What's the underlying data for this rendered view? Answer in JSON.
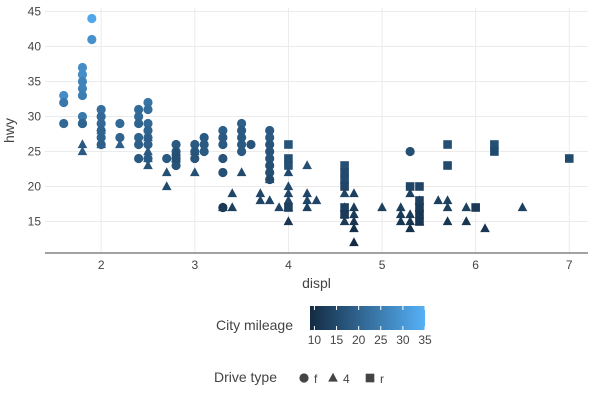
{
  "chart_data": {
    "type": "scatter",
    "xlabel": "displ",
    "ylabel": "hwy",
    "xlim": [
      1.4,
      7.2
    ],
    "ylim": [
      10.5,
      45.5
    ],
    "x_ticks": [
      2,
      3,
      4,
      5,
      6,
      7
    ],
    "y_ticks": [
      15,
      20,
      25,
      30,
      35,
      40,
      45
    ],
    "grid": true,
    "color_legend": {
      "title": "City mileage",
      "range": [
        9,
        35
      ],
      "ticks": [
        10,
        15,
        20,
        25,
        30,
        35
      ],
      "low_color": "#132B43",
      "high_color": "#56B1F7"
    },
    "shape_legend": {
      "title": "Drive type",
      "items": [
        {
          "label": "f",
          "shape": "circle"
        },
        {
          "label": "4",
          "shape": "triangle"
        },
        {
          "label": "r",
          "shape": "square"
        }
      ]
    },
    "points": [
      {
        "x": 1.6,
        "y": 33,
        "cty": 28,
        "drv": "f"
      },
      {
        "x": 1.6,
        "y": 32,
        "cty": 24,
        "drv": "f"
      },
      {
        "x": 1.6,
        "y": 29,
        "cty": 21,
        "drv": "f"
      },
      {
        "x": 1.8,
        "y": 37,
        "cty": 28,
        "drv": "f"
      },
      {
        "x": 1.8,
        "y": 36,
        "cty": 28,
        "drv": "f"
      },
      {
        "x": 1.8,
        "y": 35,
        "cty": 26,
        "drv": "f"
      },
      {
        "x": 1.8,
        "y": 34,
        "cty": 26,
        "drv": "f"
      },
      {
        "x": 1.8,
        "y": 33,
        "cty": 25,
        "drv": "f"
      },
      {
        "x": 1.8,
        "y": 30,
        "cty": 24,
        "drv": "f"
      },
      {
        "x": 1.8,
        "y": 29,
        "cty": 21,
        "drv": "f"
      },
      {
        "x": 1.8,
        "y": 29,
        "cty": 20,
        "drv": "f"
      },
      {
        "x": 1.8,
        "y": 26,
        "cty": 18,
        "drv": "4"
      },
      {
        "x": 1.8,
        "y": 25,
        "cty": 18,
        "drv": "4"
      },
      {
        "x": 1.9,
        "y": 44,
        "cty": 33,
        "drv": "f"
      },
      {
        "x": 1.9,
        "y": 41,
        "cty": 29,
        "drv": "f"
      },
      {
        "x": 2.0,
        "y": 31,
        "cty": 22,
        "drv": "f"
      },
      {
        "x": 2.0,
        "y": 30,
        "cty": 21,
        "drv": "f"
      },
      {
        "x": 2.0,
        "y": 29,
        "cty": 21,
        "drv": "f"
      },
      {
        "x": 2.0,
        "y": 28,
        "cty": 20,
        "drv": "f"
      },
      {
        "x": 2.0,
        "y": 27,
        "cty": 20,
        "drv": "f"
      },
      {
        "x": 2.0,
        "y": 26,
        "cty": 19,
        "drv": "f"
      },
      {
        "x": 2.0,
        "y": 28,
        "cty": 20,
        "drv": "4"
      },
      {
        "x": 2.0,
        "y": 26,
        "cty": 19,
        "drv": "4"
      },
      {
        "x": 2.2,
        "y": 29,
        "cty": 21,
        "drv": "f"
      },
      {
        "x": 2.2,
        "y": 27,
        "cty": 20,
        "drv": "f"
      },
      {
        "x": 2.2,
        "y": 26,
        "cty": 19,
        "drv": "4"
      },
      {
        "x": 2.4,
        "y": 31,
        "cty": 21,
        "drv": "f"
      },
      {
        "x": 2.4,
        "y": 30,
        "cty": 21,
        "drv": "f"
      },
      {
        "x": 2.4,
        "y": 29,
        "cty": 20,
        "drv": "f"
      },
      {
        "x": 2.4,
        "y": 27,
        "cty": 20,
        "drv": "f"
      },
      {
        "x": 2.4,
        "y": 26,
        "cty": 19,
        "drv": "f"
      },
      {
        "x": 2.4,
        "y": 24,
        "cty": 18,
        "drv": "f"
      },
      {
        "x": 2.5,
        "y": 32,
        "cty": 23,
        "drv": "f"
      },
      {
        "x": 2.5,
        "y": 31,
        "cty": 22,
        "drv": "f"
      },
      {
        "x": 2.5,
        "y": 29,
        "cty": 21,
        "drv": "f"
      },
      {
        "x": 2.5,
        "y": 28,
        "cty": 20,
        "drv": "f"
      },
      {
        "x": 2.5,
        "y": 27,
        "cty": 20,
        "drv": "f"
      },
      {
        "x": 2.5,
        "y": 26,
        "cty": 19,
        "drv": "f"
      },
      {
        "x": 2.5,
        "y": 24,
        "cty": 19,
        "drv": "f"
      },
      {
        "x": 2.5,
        "y": 27,
        "cty": 19,
        "drv": "4"
      },
      {
        "x": 2.5,
        "y": 25,
        "cty": 18,
        "drv": "4"
      },
      {
        "x": 2.5,
        "y": 24,
        "cty": 18,
        "drv": "4"
      },
      {
        "x": 2.5,
        "y": 23,
        "cty": 17,
        "drv": "4"
      },
      {
        "x": 2.7,
        "y": 24,
        "cty": 18,
        "drv": "f"
      },
      {
        "x": 2.7,
        "y": 22,
        "cty": 16,
        "drv": "4"
      },
      {
        "x": 2.7,
        "y": 20,
        "cty": 15,
        "drv": "4"
      },
      {
        "x": 2.8,
        "y": 26,
        "cty": 18,
        "drv": "f"
      },
      {
        "x": 2.8,
        "y": 25,
        "cty": 18,
        "drv": "f"
      },
      {
        "x": 2.8,
        "y": 24,
        "cty": 17,
        "drv": "f"
      },
      {
        "x": 2.8,
        "y": 23,
        "cty": 17,
        "drv": "f"
      },
      {
        "x": 2.8,
        "y": 24,
        "cty": 17,
        "drv": "4"
      },
      {
        "x": 2.8,
        "y": 25,
        "cty": 16,
        "drv": "4"
      },
      {
        "x": 2.8,
        "y": 24,
        "cty": 16,
        "drv": "r"
      },
      {
        "x": 3.0,
        "y": 26,
        "cty": 18,
        "drv": "f"
      },
      {
        "x": 3.0,
        "y": 25,
        "cty": 18,
        "drv": "f"
      },
      {
        "x": 3.0,
        "y": 24,
        "cty": 17,
        "drv": "f"
      },
      {
        "x": 3.0,
        "y": 25,
        "cty": 17,
        "drv": "4"
      },
      {
        "x": 3.0,
        "y": 22,
        "cty": 16,
        "drv": "4"
      },
      {
        "x": 3.1,
        "y": 27,
        "cty": 18,
        "drv": "f"
      },
      {
        "x": 3.1,
        "y": 26,
        "cty": 18,
        "drv": "f"
      },
      {
        "x": 3.1,
        "y": 25,
        "cty": 18,
        "drv": "f"
      },
      {
        "x": 3.3,
        "y": 28,
        "cty": 19,
        "drv": "f"
      },
      {
        "x": 3.3,
        "y": 27,
        "cty": 18,
        "drv": "f"
      },
      {
        "x": 3.3,
        "y": 26,
        "cty": 18,
        "drv": "f"
      },
      {
        "x": 3.3,
        "y": 24,
        "cty": 17,
        "drv": "f"
      },
      {
        "x": 3.3,
        "y": 22,
        "cty": 16,
        "drv": "f"
      },
      {
        "x": 3.3,
        "y": 17,
        "cty": 11,
        "drv": "f"
      },
      {
        "x": 3.3,
        "y": 17,
        "cty": 12,
        "drv": "4"
      },
      {
        "x": 3.4,
        "y": 19,
        "cty": 14,
        "drv": "4"
      },
      {
        "x": 3.4,
        "y": 17,
        "cty": 13,
        "drv": "4"
      },
      {
        "x": 3.5,
        "y": 29,
        "cty": 19,
        "drv": "f"
      },
      {
        "x": 3.5,
        "y": 28,
        "cty": 18,
        "drv": "f"
      },
      {
        "x": 3.5,
        "y": 27,
        "cty": 18,
        "drv": "f"
      },
      {
        "x": 3.5,
        "y": 26,
        "cty": 18,
        "drv": "f"
      },
      {
        "x": 3.5,
        "y": 25,
        "cty": 18,
        "drv": "f"
      },
      {
        "x": 3.5,
        "y": 22,
        "cty": 15,
        "drv": "4"
      },
      {
        "x": 3.6,
        "y": 26,
        "cty": 17,
        "drv": "f"
      },
      {
        "x": 3.7,
        "y": 19,
        "cty": 14,
        "drv": "4"
      },
      {
        "x": 3.7,
        "y": 18,
        "cty": 14,
        "drv": "4"
      },
      {
        "x": 3.8,
        "y": 28,
        "cty": 18,
        "drv": "f"
      },
      {
        "x": 3.8,
        "y": 27,
        "cty": 18,
        "drv": "f"
      },
      {
        "x": 3.8,
        "y": 26,
        "cty": 17,
        "drv": "f"
      },
      {
        "x": 3.8,
        "y": 25,
        "cty": 17,
        "drv": "f"
      },
      {
        "x": 3.8,
        "y": 24,
        "cty": 17,
        "drv": "f"
      },
      {
        "x": 3.8,
        "y": 23,
        "cty": 16,
        "drv": "f"
      },
      {
        "x": 3.8,
        "y": 22,
        "cty": 16,
        "drv": "f"
      },
      {
        "x": 3.8,
        "y": 21,
        "cty": 15,
        "drv": "f"
      },
      {
        "x": 3.8,
        "y": 21,
        "cty": 15,
        "drv": "4"
      },
      {
        "x": 3.8,
        "y": 18,
        "cty": 14,
        "drv": "4"
      },
      {
        "x": 3.9,
        "y": 17,
        "cty": 14,
        "drv": "4"
      },
      {
        "x": 4.0,
        "y": 26,
        "cty": 17,
        "drv": "r"
      },
      {
        "x": 4.0,
        "y": 24,
        "cty": 16,
        "drv": "r"
      },
      {
        "x": 4.0,
        "y": 23,
        "cty": 16,
        "drv": "r"
      },
      {
        "x": 4.0,
        "y": 22,
        "cty": 15,
        "drv": "4"
      },
      {
        "x": 4.0,
        "y": 20,
        "cty": 15,
        "drv": "4"
      },
      {
        "x": 4.0,
        "y": 19,
        "cty": 14,
        "drv": "4"
      },
      {
        "x": 4.0,
        "y": 18,
        "cty": 14,
        "drv": "4"
      },
      {
        "x": 4.0,
        "y": 17,
        "cty": 13,
        "drv": "4"
      },
      {
        "x": 4.0,
        "y": 15,
        "cty": 11,
        "drv": "4"
      },
      {
        "x": 4.0,
        "y": 17,
        "cty": 13,
        "drv": "r"
      },
      {
        "x": 4.2,
        "y": 23,
        "cty": 16,
        "drv": "4"
      },
      {
        "x": 4.2,
        "y": 18,
        "cty": 14,
        "drv": "4"
      },
      {
        "x": 4.2,
        "y": 17,
        "cty": 13,
        "drv": "4"
      },
      {
        "x": 4.2,
        "y": 19,
        "cty": 14,
        "drv": "4"
      },
      {
        "x": 4.3,
        "y": 18,
        "cty": 14,
        "drv": "4"
      },
      {
        "x": 4.6,
        "y": 23,
        "cty": 16,
        "drv": "r"
      },
      {
        "x": 4.6,
        "y": 22,
        "cty": 15,
        "drv": "r"
      },
      {
        "x": 4.6,
        "y": 21,
        "cty": 15,
        "drv": "r"
      },
      {
        "x": 4.6,
        "y": 20,
        "cty": 14,
        "drv": "r"
      },
      {
        "x": 4.6,
        "y": 19,
        "cty": 14,
        "drv": "4"
      },
      {
        "x": 4.6,
        "y": 17,
        "cty": 13,
        "drv": "4"
      },
      {
        "x": 4.6,
        "y": 16,
        "cty": 12,
        "drv": "4"
      },
      {
        "x": 4.6,
        "y": 15,
        "cty": 12,
        "drv": "4"
      },
      {
        "x": 4.6,
        "y": 17,
        "cty": 13,
        "drv": "r"
      },
      {
        "x": 4.6,
        "y": 16,
        "cty": 12,
        "drv": "r"
      },
      {
        "x": 4.7,
        "y": 19,
        "cty": 13,
        "drv": "4"
      },
      {
        "x": 4.7,
        "y": 17,
        "cty": 12,
        "drv": "4"
      },
      {
        "x": 4.7,
        "y": 16,
        "cty": 12,
        "drv": "4"
      },
      {
        "x": 4.7,
        "y": 15,
        "cty": 11,
        "drv": "4"
      },
      {
        "x": 4.7,
        "y": 12,
        "cty": 9,
        "drv": "4"
      },
      {
        "x": 4.7,
        "y": 14,
        "cty": 10,
        "drv": "4"
      },
      {
        "x": 5.0,
        "y": 17,
        "cty": 13,
        "drv": "4"
      },
      {
        "x": 5.2,
        "y": 17,
        "cty": 13,
        "drv": "4"
      },
      {
        "x": 5.2,
        "y": 16,
        "cty": 12,
        "drv": "4"
      },
      {
        "x": 5.2,
        "y": 15,
        "cty": 11,
        "drv": "4"
      },
      {
        "x": 5.3,
        "y": 25,
        "cty": 16,
        "drv": "f"
      },
      {
        "x": 5.3,
        "y": 20,
        "cty": 14,
        "drv": "r"
      },
      {
        "x": 5.3,
        "y": 19,
        "cty": 13,
        "drv": "4"
      },
      {
        "x": 5.3,
        "y": 16,
        "cty": 12,
        "drv": "4"
      },
      {
        "x": 5.3,
        "y": 15,
        "cty": 11,
        "drv": "4"
      },
      {
        "x": 5.3,
        "y": 14,
        "cty": 10,
        "drv": "4"
      },
      {
        "x": 5.4,
        "y": 20,
        "cty": 14,
        "drv": "r"
      },
      {
        "x": 5.4,
        "y": 18,
        "cty": 13,
        "drv": "r"
      },
      {
        "x": 5.4,
        "y": 17,
        "cty": 12,
        "drv": "r"
      },
      {
        "x": 5.4,
        "y": 16,
        "cty": 11,
        "drv": "r"
      },
      {
        "x": 5.4,
        "y": 15,
        "cty": 11,
        "drv": "r"
      },
      {
        "x": 5.4,
        "y": 18,
        "cty": 13,
        "drv": "4"
      },
      {
        "x": 5.4,
        "y": 17,
        "cty": 12,
        "drv": "4"
      },
      {
        "x": 5.4,
        "y": 15,
        "cty": 11,
        "drv": "4"
      },
      {
        "x": 5.6,
        "y": 18,
        "cty": 13,
        "drv": "4"
      },
      {
        "x": 5.7,
        "y": 26,
        "cty": 16,
        "drv": "r"
      },
      {
        "x": 5.7,
        "y": 23,
        "cty": 15,
        "drv": "r"
      },
      {
        "x": 5.7,
        "y": 18,
        "cty": 13,
        "drv": "4"
      },
      {
        "x": 5.7,
        "y": 17,
        "cty": 13,
        "drv": "4"
      },
      {
        "x": 5.7,
        "y": 15,
        "cty": 11,
        "drv": "4"
      },
      {
        "x": 5.9,
        "y": 17,
        "cty": 13,
        "drv": "4"
      },
      {
        "x": 5.9,
        "y": 15,
        "cty": 11,
        "drv": "4"
      },
      {
        "x": 6.0,
        "y": 17,
        "cty": 12,
        "drv": "r"
      },
      {
        "x": 6.1,
        "y": 14,
        "cty": 11,
        "drv": "4"
      },
      {
        "x": 6.2,
        "y": 26,
        "cty": 16,
        "drv": "r"
      },
      {
        "x": 6.2,
        "y": 25,
        "cty": 15,
        "drv": "r"
      },
      {
        "x": 6.5,
        "y": 17,
        "cty": 13,
        "drv": "4"
      },
      {
        "x": 7.0,
        "y": 24,
        "cty": 15,
        "drv": "r"
      }
    ]
  }
}
